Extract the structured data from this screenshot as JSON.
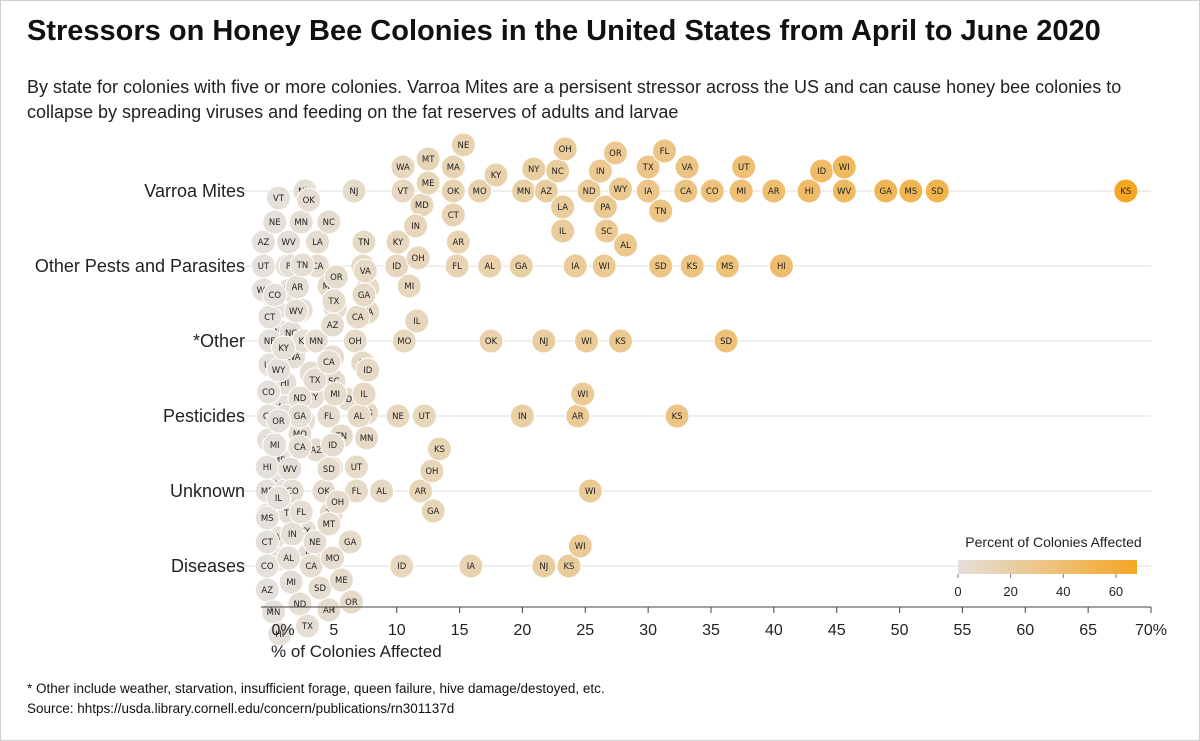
{
  "title": "Stressors on Honey Bee Colonies in the United States from April to June 2020",
  "subtitle": "By state for colonies with five or more colonies. Varroa Mites are a persisent stressor across the US and can cause honey bee colonies to collapse by spreading viruses and feeding on the fat reserves of adults and larvae",
  "footnote": "* Other include weather, starvation, insufficient forage, queen failure, hive damage/destoyed, etc.",
  "source": "Source: hhtps://usda.library.cornell.edu/concern/publications/rn301137d",
  "colors": {
    "low": "#e4e0da",
    "high": "#f5a623",
    "gridline": "#dddddd",
    "axis": "#444444",
    "dot_stroke": "#ffffff"
  },
  "chart_data": {
    "type": "scatter",
    "xlabel": "% of Colonies Affected",
    "xlim": [
      0,
      70
    ],
    "x_ticks": [
      0,
      5,
      10,
      15,
      20,
      25,
      30,
      35,
      40,
      45,
      50,
      55,
      60,
      65,
      70
    ],
    "x_tick_labels": [
      "0%",
      "5",
      "10",
      "15",
      "20",
      "25",
      "30",
      "35",
      "40",
      "45",
      "50",
      "55",
      "60",
      "65",
      "70%"
    ],
    "categories": [
      "Varroa Mites",
      "Other Pests and Parasites",
      "*Other",
      "Pesticides",
      "Unknown",
      "Diseases"
    ],
    "legend": {
      "title": "Percent of Colonies Affected",
      "range": [
        0,
        68
      ],
      "ticks": [
        0,
        20,
        40,
        60
      ],
      "position": "bottom-right"
    },
    "series": [
      {
        "category": "Varroa Mites",
        "points": [
          {
            "state": "NM",
            "value": 2.7
          },
          {
            "state": "NJ",
            "value": 6.6
          },
          {
            "state": "VT",
            "value": 10.5
          },
          {
            "state": "WA",
            "value": 10.5
          },
          {
            "state": "ME",
            "value": 12.5
          },
          {
            "state": "MT",
            "value": 12.5
          },
          {
            "state": "MD",
            "value": 12.0
          },
          {
            "state": "OK",
            "value": 14.5
          },
          {
            "state": "NE",
            "value": 15.3
          },
          {
            "state": "MA",
            "value": 14.5
          },
          {
            "state": "CT",
            "value": 14.5
          },
          {
            "state": "KY",
            "value": 17.9
          },
          {
            "state": "MO",
            "value": 16.6
          },
          {
            "state": "MN",
            "value": 20.1
          },
          {
            "state": "NY",
            "value": 20.9
          },
          {
            "state": "AZ",
            "value": 21.9
          },
          {
            "state": "LA",
            "value": 23.2
          },
          {
            "state": "NC",
            "value": 22.8
          },
          {
            "state": "OH",
            "value": 23.4
          },
          {
            "state": "IL",
            "value": 23.2
          },
          {
            "state": "SC",
            "value": 26.7
          },
          {
            "state": "IN",
            "value": 26.2
          },
          {
            "state": "WY",
            "value": 27.8
          },
          {
            "state": "ND",
            "value": 25.3
          },
          {
            "state": "OR",
            "value": 27.4
          },
          {
            "state": "PA",
            "value": 26.6
          },
          {
            "state": "AL",
            "value": 28.2
          },
          {
            "state": "IA",
            "value": 30.0
          },
          {
            "state": "FL",
            "value": 31.3
          },
          {
            "state": "TX",
            "value": 30.0
          },
          {
            "state": "TN",
            "value": 31.0
          },
          {
            "state": "VA",
            "value": 33.1
          },
          {
            "state": "CA",
            "value": 33.0
          },
          {
            "state": "CO",
            "value": 35.1
          },
          {
            "state": "UT",
            "value": 37.6
          },
          {
            "state": "MI",
            "value": 37.4
          },
          {
            "state": "AR",
            "value": 40.0
          },
          {
            "state": "HI",
            "value": 42.8
          },
          {
            "state": "ID",
            "value": 43.8
          },
          {
            "state": "WV",
            "value": 45.6
          },
          {
            "state": "WI",
            "value": 45.6
          },
          {
            "state": "GA",
            "value": 48.9
          },
          {
            "state": "MS",
            "value": 50.9
          },
          {
            "state": "SD",
            "value": 53.0
          },
          {
            "state": "KS",
            "value": 68.0
          }
        ]
      },
      {
        "category": "Other Pests and Parasites",
        "points": [
          {
            "state": "MD",
            "value": 0.8
          },
          {
            "state": "UT",
            "value": -0.6
          },
          {
            "state": "CT",
            "value": 1.3
          },
          {
            "state": "NE",
            "value": 0.3
          },
          {
            "state": "MN",
            "value": 2.4
          },
          {
            "state": "AZ",
            "value": -0.6
          },
          {
            "state": "WV",
            "value": 1.4
          },
          {
            "state": "OK",
            "value": 3.0
          },
          {
            "state": "NJ",
            "value": 0.3
          },
          {
            "state": "PA",
            "value": 1.6
          },
          {
            "state": "ND",
            "value": 1.5
          },
          {
            "state": "WA",
            "value": -0.6
          },
          {
            "state": "NY",
            "value": 2.4
          },
          {
            "state": "VT",
            "value": 0.6
          },
          {
            "state": "CA",
            "value": 3.7
          },
          {
            "state": "MT",
            "value": 4.6
          },
          {
            "state": "SC",
            "value": 5.1
          },
          {
            "state": "LA",
            "value": 3.7
          },
          {
            "state": "NC",
            "value": 4.6
          },
          {
            "state": "TN",
            "value": 7.4
          },
          {
            "state": "IL",
            "value": 7.7
          },
          {
            "state": "TX",
            "value": 7.3
          },
          {
            "state": "VA",
            "value": 7.7
          },
          {
            "state": "KY",
            "value": 10.1
          },
          {
            "state": "ID",
            "value": 10.0
          },
          {
            "state": "IN",
            "value": 11.5
          },
          {
            "state": "OH",
            "value": 11.7
          },
          {
            "state": "MI",
            "value": 11.0
          },
          {
            "state": "AR",
            "value": 14.9
          },
          {
            "state": "FL",
            "value": 14.8
          },
          {
            "state": "AL",
            "value": 17.4
          },
          {
            "state": "GA",
            "value": 19.9
          },
          {
            "state": "IA",
            "value": 24.2
          },
          {
            "state": "WI",
            "value": 26.5
          },
          {
            "state": "SD",
            "value": 31.0
          },
          {
            "state": "KS",
            "value": 33.5
          },
          {
            "state": "MS",
            "value": 36.3
          },
          {
            "state": "HI",
            "value": 40.6
          }
        ]
      },
      {
        "category": "*Other",
        "points": [
          {
            "state": "WA",
            "value": 1.8
          },
          {
            "state": "IA",
            "value": 3.2
          },
          {
            "state": "NE",
            "value": -0.1
          },
          {
            "state": "WV",
            "value": 2.0
          },
          {
            "state": "MT",
            "value": 3.6
          },
          {
            "state": "OR",
            "value": 5.2
          },
          {
            "state": "AL",
            "value": 7.3
          },
          {
            "state": "HI",
            "value": 1.1
          },
          {
            "state": "TN",
            "value": 2.5
          },
          {
            "state": "TX",
            "value": 5.0
          },
          {
            "state": "OH",
            "value": 6.7
          },
          {
            "state": "CT",
            "value": -0.1
          },
          {
            "state": "AR",
            "value": 2.1
          },
          {
            "state": "MN",
            "value": 3.6
          },
          {
            "state": "ID",
            "value": 6.1
          },
          {
            "state": "MS",
            "value": 7.6
          },
          {
            "state": "MA",
            "value": 1.1
          },
          {
            "state": "MD",
            "value": 2.6
          },
          {
            "state": "AZ",
            "value": 4.9
          },
          {
            "state": "GA",
            "value": 7.4
          },
          {
            "state": "UT",
            "value": -0.1
          },
          {
            "state": "NC",
            "value": 1.6
          },
          {
            "state": "NY",
            "value": 3.3
          },
          {
            "state": "IN",
            "value": 4.9
          },
          {
            "state": "CA",
            "value": 6.9
          },
          {
            "state": "CO",
            "value": 0.3
          },
          {
            "state": "KY",
            "value": 2.6
          },
          {
            "state": "SC",
            "value": 5.0
          },
          {
            "state": "VA",
            "value": 7.5
          },
          {
            "state": "IL",
            "value": 11.6
          },
          {
            "state": "MO",
            "value": 10.6
          },
          {
            "state": "OK",
            "value": 17.5
          },
          {
            "state": "NJ",
            "value": 21.7
          },
          {
            "state": "WI",
            "value": 25.1
          },
          {
            "state": "KS",
            "value": 27.8
          },
          {
            "state": "SD",
            "value": 36.2
          }
        ]
      },
      {
        "category": "Pesticides",
        "points": [
          {
            "state": "KY",
            "value": 1.0
          },
          {
            "state": "ND",
            "value": 2.3
          },
          {
            "state": "FL",
            "value": 4.6
          },
          {
            "state": "CT",
            "value": -0.2
          },
          {
            "state": "MD",
            "value": 0.7
          },
          {
            "state": "MO",
            "value": 2.3
          },
          {
            "state": "TX",
            "value": 3.5
          },
          {
            "state": "TN",
            "value": 5.6
          },
          {
            "state": "MN",
            "value": 7.6
          },
          {
            "state": "CO",
            "value": -0.2
          },
          {
            "state": "OR",
            "value": 1.2
          },
          {
            "state": "AZ",
            "value": 3.6
          },
          {
            "state": "MI",
            "value": 5.1
          },
          {
            "state": "IL",
            "value": 7.4
          },
          {
            "state": "WY",
            "value": 0.6
          },
          {
            "state": "GA",
            "value": 2.3
          },
          {
            "state": "HI",
            "value": -0.2
          },
          {
            "state": "CA",
            "value": 4.6
          },
          {
            "state": "AL",
            "value": 7.0
          },
          {
            "state": "WA",
            "value": 0.9
          },
          {
            "state": "OH",
            "value": 4.8
          },
          {
            "state": "ID",
            "value": 7.7
          },
          {
            "state": "NE",
            "value": 10.1
          },
          {
            "state": "UT",
            "value": 12.2
          },
          {
            "state": "IN",
            "value": 20.0
          },
          {
            "state": "WI",
            "value": 24.8
          },
          {
            "state": "AR",
            "value": 24.4
          },
          {
            "state": "KS",
            "value": 32.3
          }
        ]
      },
      {
        "category": "Unknown",
        "points": [
          {
            "state": "OR",
            "value": 0.6
          },
          {
            "state": "KY",
            "value": 2.7
          },
          {
            "state": "ME",
            "value": -0.3
          },
          {
            "state": "WV",
            "value": 1.5
          },
          {
            "state": "TX",
            "value": 4.8
          },
          {
            "state": "MI",
            "value": 0.3
          },
          {
            "state": "CA",
            "value": 2.3
          },
          {
            "state": "OK",
            "value": 4.2
          },
          {
            "state": "FL",
            "value": 6.8
          },
          {
            "state": "HI",
            "value": -0.3
          },
          {
            "state": "MO",
            "value": 1.1
          },
          {
            "state": "IL",
            "value": 3.0
          },
          {
            "state": "ID",
            "value": 4.9
          },
          {
            "state": "UT",
            "value": 6.8
          },
          {
            "state": "AL",
            "value": 8.8
          },
          {
            "state": "VA",
            "value": 0.3
          },
          {
            "state": "TN",
            "value": 1.5
          },
          {
            "state": "SD",
            "value": 4.6
          },
          {
            "state": "VT",
            "value": -0.3
          },
          {
            "state": "CO",
            "value": 1.7
          },
          {
            "state": "WY",
            "value": 0.7
          },
          {
            "state": "OH",
            "value": 12.8
          },
          {
            "state": "AR",
            "value": 11.9
          },
          {
            "state": "KS",
            "value": 13.4
          },
          {
            "state": "GA",
            "value": 12.9
          },
          {
            "state": "WI",
            "value": 25.4
          }
        ]
      },
      {
        "category": "Diseases",
        "points": [
          {
            "state": "CO",
            "value": -0.3
          },
          {
            "state": "CT",
            "value": -0.3
          },
          {
            "state": "AL",
            "value": 1.4
          },
          {
            "state": "TX",
            "value": 2.9
          },
          {
            "state": "HI",
            "value": 0.7
          },
          {
            "state": "ND",
            "value": 2.3
          },
          {
            "state": "MT",
            "value": 4.6
          },
          {
            "state": "SD",
            "value": 3.9
          },
          {
            "state": "ME",
            "value": 5.6
          },
          {
            "state": "AZ",
            "value": -0.3
          },
          {
            "state": "IN",
            "value": 1.7
          },
          {
            "state": "CA",
            "value": 3.2
          },
          {
            "state": "MO",
            "value": 4.9
          },
          {
            "state": "OR",
            "value": 6.4
          },
          {
            "state": "IL",
            "value": 0.6
          },
          {
            "state": "FL",
            "value": 2.4
          },
          {
            "state": "AR",
            "value": 4.6
          },
          {
            "state": "GA",
            "value": 6.3
          },
          {
            "state": "MS",
            "value": -0.3
          },
          {
            "state": "MI",
            "value": 1.6
          },
          {
            "state": "NE",
            "value": 3.5
          },
          {
            "state": "OH",
            "value": 5.3
          },
          {
            "state": "MN",
            "value": 0.2
          },
          {
            "state": "ID",
            "value": 10.4
          },
          {
            "state": "IA",
            "value": 15.9
          },
          {
            "state": "NJ",
            "value": 21.7
          },
          {
            "state": "KS",
            "value": 23.7
          },
          {
            "state": "WI",
            "value": 24.6
          }
        ]
      }
    ]
  }
}
